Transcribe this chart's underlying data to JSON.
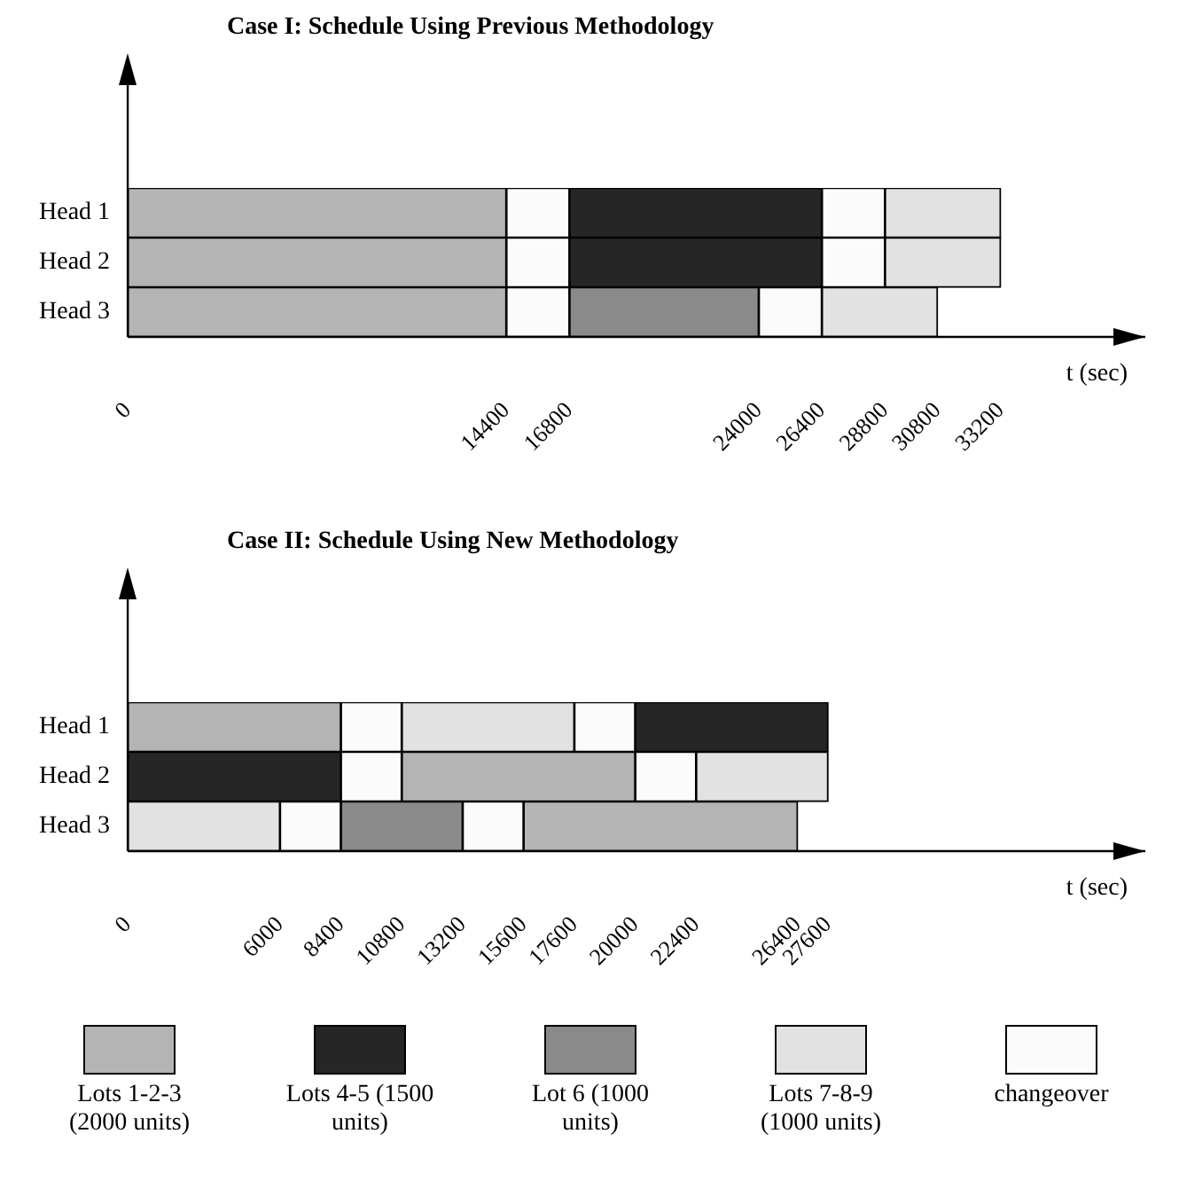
{
  "chart_data": [
    {
      "type": "bar",
      "orientation": "horizontal",
      "title": "Case I: Schedule Using Previous Methodology",
      "xlabel": "t (sec)",
      "categories": [
        "Head 1",
        "Head 2",
        "Head 3"
      ],
      "xlim": [
        0,
        38700
      ],
      "xticks": [
        0,
        14400,
        16800,
        24000,
        26400,
        28800,
        30800,
        33200
      ],
      "grid": false,
      "legend": "bottom",
      "series": [
        {
          "name": "Lots 1-2-3 (2000 units)",
          "color": "#b4b4b4",
          "values": [
            14400,
            14400,
            14400
          ],
          "base": [
            0,
            0,
            0
          ]
        },
        {
          "name": "Lots 4-5 (1500 units)",
          "color": "#262626",
          "values": [
            9600,
            9600,
            null
          ],
          "base": [
            16800,
            16800,
            null
          ]
        },
        {
          "name": "Lot 6 (1000 units)",
          "color": "#8a8a8a",
          "values": [
            null,
            null,
            7200
          ],
          "base": [
            null,
            null,
            16800
          ]
        },
        {
          "name": "Lots 7-8-9 (1000 units)",
          "color": "#e2e2e2",
          "values": [
            4400,
            4400,
            4400
          ],
          "base": [
            28800,
            28800,
            26400
          ]
        },
        {
          "name": "changeover",
          "color": "#fbfbfb",
          "values": [
            2400,
            2400,
            2400
          ],
          "base": [
            14400,
            14400,
            14400
          ]
        },
        {
          "color": "#fbfbfb",
          "values": [
            2400,
            2400,
            2400
          ],
          "base": [
            26400,
            26400,
            24000
          ]
        }
      ]
    },
    {
      "type": "bar",
      "orientation": "horizontal",
      "title": "Case II: Schedule Using New Methodology",
      "xlabel": "t (sec)",
      "categories": [
        "Head 1",
        "Head 2",
        "Head 3"
      ],
      "xlim": [
        0,
        40100
      ],
      "xticks": [
        0,
        6000,
        8400,
        10800,
        13200,
        15600,
        17600,
        20000,
        22400,
        26400,
        27600
      ],
      "grid": false,
      "legend": "bottom",
      "series": [
        {
          "name": "Lots 1-2-3 (2000 units)",
          "color": "#b4b4b4",
          "values": [
            8400,
            9200,
            10800
          ],
          "base": [
            0,
            10800,
            15600
          ]
        },
        {
          "name": "Lots 4-5 (1500 units)",
          "color": "#262626",
          "values": [
            7600,
            8400,
            null
          ],
          "base": [
            20000,
            0,
            null
          ]
        },
        {
          "name": "Lot 6 (1000 units)",
          "color": "#8a8a8a",
          "values": [
            null,
            null,
            4800
          ],
          "base": [
            null,
            null,
            8400
          ]
        },
        {
          "name": "Lots 7-8-9 (1000 units)",
          "color": "#e2e2e2",
          "values": [
            6800,
            5200,
            6000
          ],
          "base": [
            10800,
            22400,
            0
          ]
        },
        {
          "name": "changeover",
          "color": "#fbfbfb",
          "values": [
            2400,
            2400,
            2400
          ],
          "base": [
            8400,
            8400,
            6000
          ]
        },
        {
          "color": "#fbfbfb",
          "values": [
            2400,
            2400,
            2400
          ],
          "base": [
            17600,
            20000,
            13200
          ]
        }
      ]
    }
  ]
}
